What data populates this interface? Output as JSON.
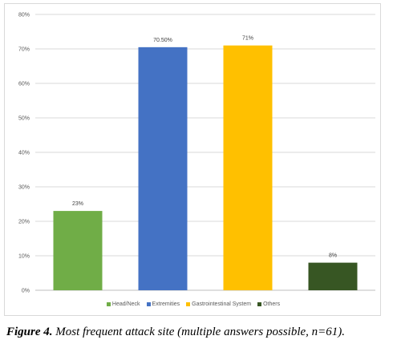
{
  "caption": {
    "lead": "Figure 4.",
    "text": " Most frequent attack site (multiple answers possible, n=61)."
  },
  "chart_data": {
    "type": "bar",
    "categories": [
      "Head/Neck",
      "Extremities",
      "Gastrointestinal System",
      "Others"
    ],
    "values": [
      23,
      70.5,
      71,
      8
    ],
    "data_labels": [
      "23%",
      "70.50%",
      "71%",
      "8%"
    ],
    "colors": [
      "#70ad47",
      "#4472c4",
      "#ffc000",
      "#375623"
    ],
    "ylim": [
      0,
      80
    ],
    "yticks": [
      0,
      10,
      20,
      30,
      40,
      50,
      60,
      70,
      80
    ],
    "ytick_labels": [
      "0%",
      "10%",
      "20%",
      "30%",
      "40%",
      "50%",
      "60%",
      "70%",
      "80%"
    ],
    "grid": true,
    "legend": "bottom",
    "title": "",
    "xlabel": "",
    "ylabel": ""
  }
}
